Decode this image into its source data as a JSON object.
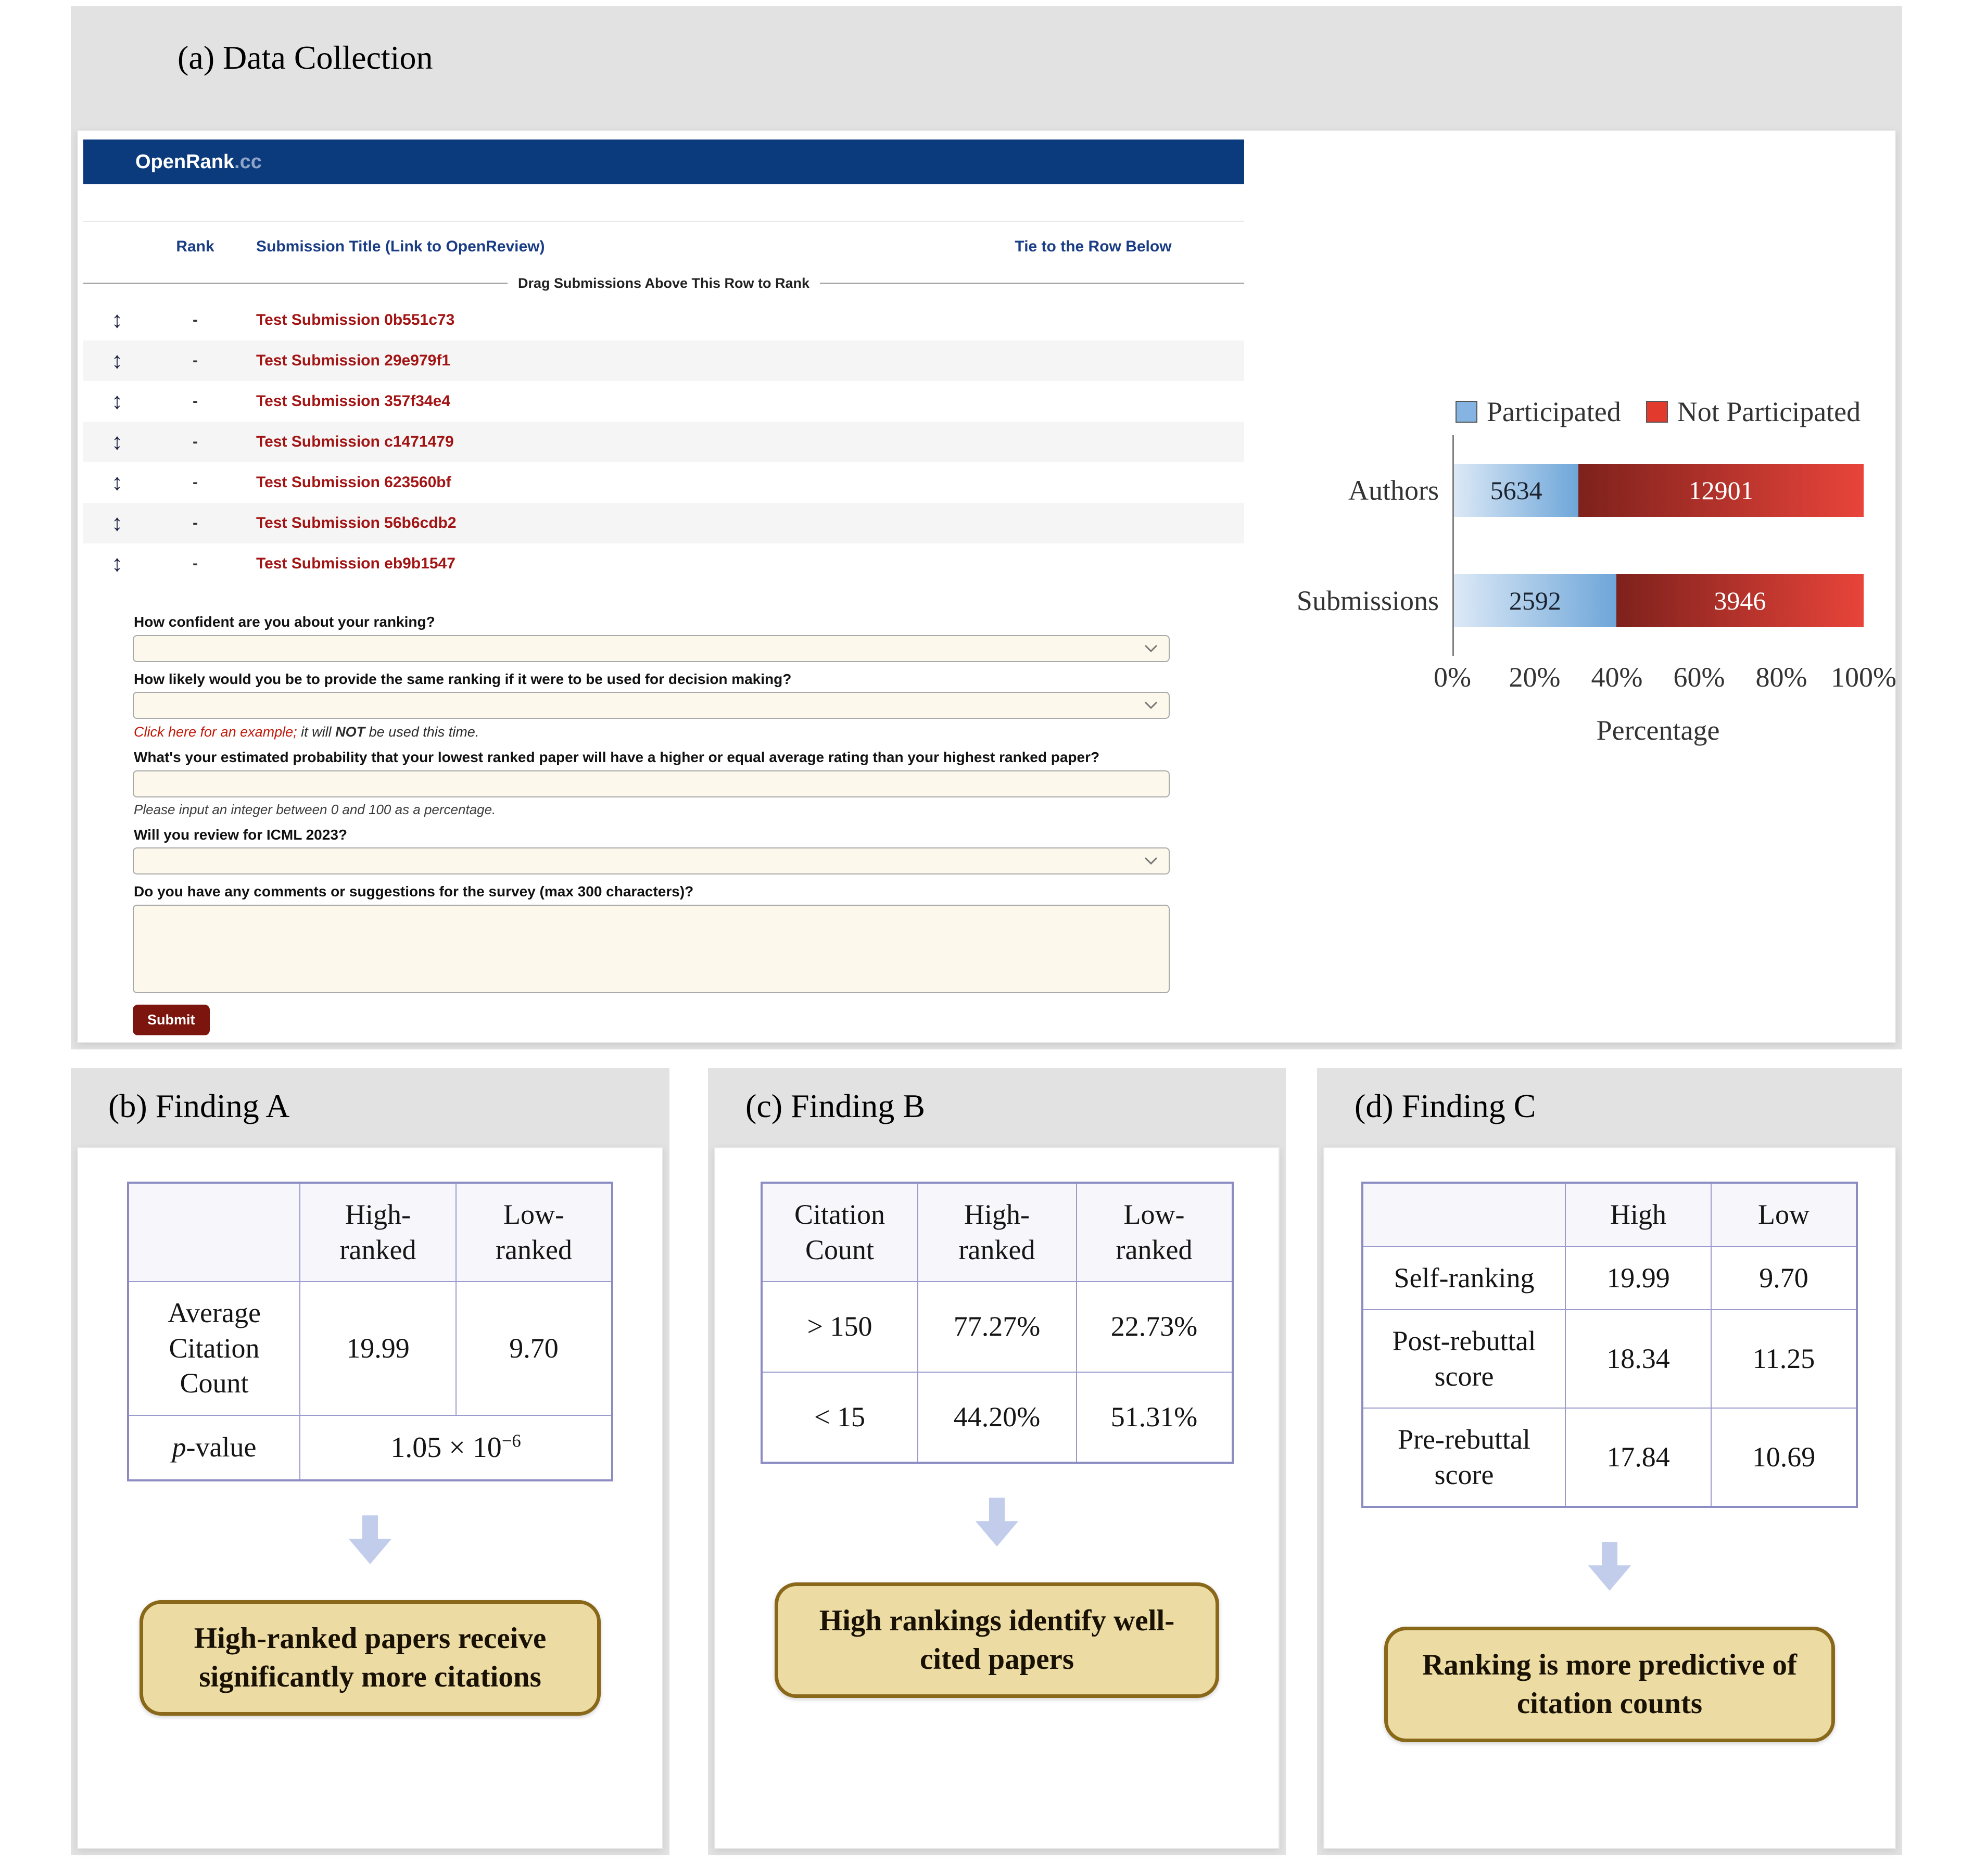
{
  "colors": {
    "panel_band": "#e2e2e2",
    "openrank_navy": "#0b3a7d",
    "link_red": "#a31414",
    "header_blue": "#1a3d85",
    "input_cream": "#fcf8eb",
    "submit_maroon": "#7c150e",
    "bar_blue": "#6ea6d9",
    "bar_red": "#e8443a",
    "table_border_purple": "#8c8cc2",
    "callout_bg": "#ecdca4",
    "callout_border": "#8a681a",
    "arrow_fill": "#c2cdec"
  },
  "icons": {
    "drag_handle": "↕"
  },
  "panel_a": {
    "title": "(a) Data Collection",
    "openrank": {
      "brand": "OpenRank",
      "brand_suffix": ".cc",
      "columns": {
        "rank": "Rank",
        "title": "Submission Title (Link to OpenReview)",
        "tie": "Tie to the Row Below"
      },
      "divider": "Drag Submissions Above This Row to Rank",
      "submissions": [
        {
          "rank": "-",
          "title": "Test Submission 0b551c73"
        },
        {
          "rank": "-",
          "title": "Test Submission 29e979f1"
        },
        {
          "rank": "-",
          "title": "Test Submission 357f34e4"
        },
        {
          "rank": "-",
          "title": "Test Submission c1471479"
        },
        {
          "rank": "-",
          "title": "Test Submission 623560bf"
        },
        {
          "rank": "-",
          "title": "Test Submission 56b6cdb2"
        },
        {
          "rank": "-",
          "title": "Test Submission eb9b1547"
        }
      ],
      "survey": {
        "q1": "How confident are you about your ranking?",
        "q2": "How likely would you be to provide the same ranking if it were to be used for decision making?",
        "q2_link": "Click here for an example;",
        "q2_mid": " it will ",
        "q2_not": "NOT",
        "q2_end": " be used this time.",
        "q3": "What's your estimated probability that your lowest ranked paper will have a higher or equal average rating than your highest ranked paper?",
        "q3_note": "Please input an integer between 0 and 100 as a percentage.",
        "q4": "Will you review for ICML 2023?",
        "q5": "Do you have any comments or suggestions for the survey (max 300 characters)?",
        "submit": "Submit"
      }
    }
  },
  "chart_data": {
    "type": "bar",
    "orientation": "horizontal",
    "stacked": true,
    "categories": [
      "Authors",
      "Submissions"
    ],
    "series": [
      {
        "name": "Participated",
        "values": [
          5634,
          2592
        ],
        "color": "#85b3e2"
      },
      {
        "name": "Not Participated",
        "values": [
          12901,
          3946
        ],
        "color": "#e23b2e"
      }
    ],
    "participation_pct": [
      30.4,
      39.6
    ],
    "xlabel": "Percentage",
    "x_ticks": [
      "0%",
      "20%",
      "40%",
      "60%",
      "80%",
      "100%"
    ],
    "xlim": [
      0,
      100
    ],
    "legend_position": "top",
    "grid": false
  },
  "panel_b": {
    "title": "(b) Finding A",
    "table": {
      "col_blank": "",
      "col_high": "High-ranked",
      "col_low": "Low-ranked",
      "row1_label": "Average Citation Count",
      "row1_high": "19.99",
      "row1_low": "9.70",
      "pvalue_label_italic": "p",
      "pvalue_label_rest": "-value",
      "pvalue_base": "1.05 × 10",
      "pvalue_exp": "−6"
    },
    "callout": "High-ranked papers receive significantly more citations"
  },
  "panel_c": {
    "title": "(c) Finding B",
    "table": {
      "headers": [
        "Citation Count",
        "High-ranked",
        "Low-ranked"
      ],
      "rows": [
        [
          "> 150",
          "77.27%",
          "22.73%"
        ],
        [
          "< 15",
          "44.20%",
          "51.31%"
        ]
      ]
    },
    "callout": "High rankings identify well-cited papers"
  },
  "panel_d": {
    "title": "(d) Finding C",
    "table": {
      "col_blank": "",
      "col_high": "High",
      "col_low": "Low",
      "rows": [
        {
          "label": "Self-ranking",
          "high": "19.99",
          "low": "9.70"
        },
        {
          "label": "Post-rebuttal score",
          "high": "18.34",
          "low": "11.25"
        },
        {
          "label": "Pre-rebuttal score",
          "high": "17.84",
          "low": "10.69"
        }
      ]
    },
    "callout": "Ranking is more predictive of citation counts"
  }
}
